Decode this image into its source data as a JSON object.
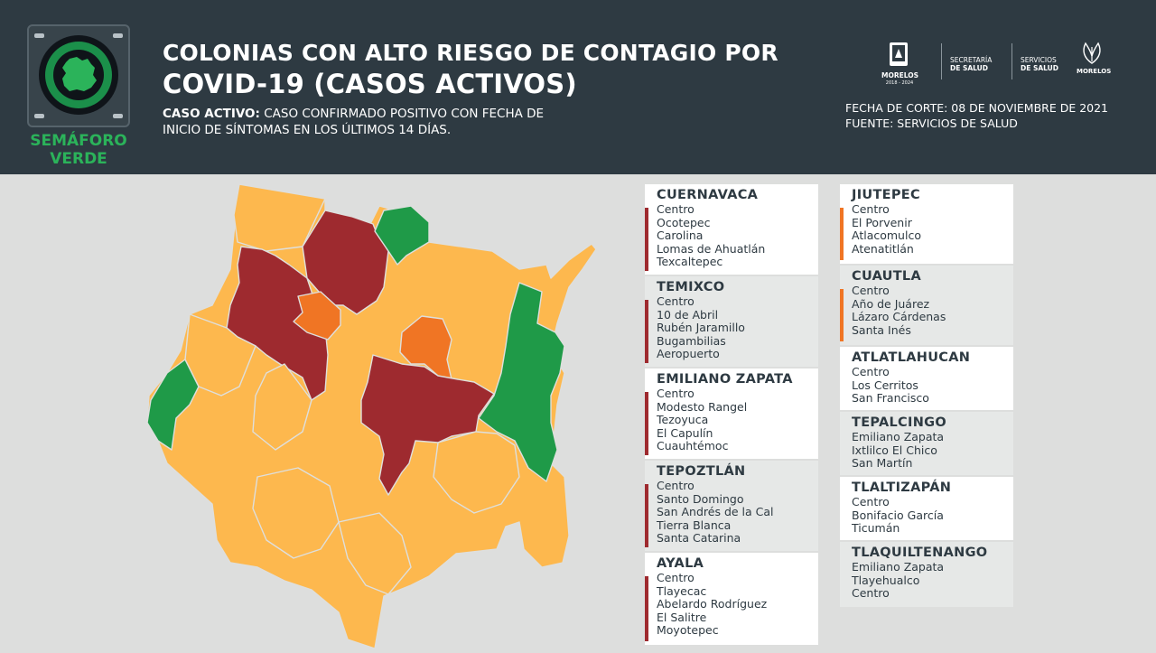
{
  "header": {
    "title_line1": "COLONIAS CON ALTO RIESGO DE CONTAGIO POR",
    "title_line2": "COVID-19 (CASOS ACTIVOS)",
    "definition_label": "CASO ACTIVO:",
    "definition_text_1": "CASO CONFIRMADO POSITIVO CON FECHA DE",
    "definition_text_2": "INICIO DE SÍNTOMAS EN LOS ÚLTIMOS 14 DÍAS.",
    "fecha": "FECHA DE CORTE: 08 DE NOVIEMBRE DE 2021",
    "fuente": "FUENTE: SERVICIOS DE SALUD",
    "semaforo_1": "SEMÁFORO",
    "semaforo_2": "VERDE"
  },
  "gov_logos": {
    "morelos": "MORELOS",
    "morelos_years": "2018 - 2024",
    "secretaria_1": "SECRETARÍA",
    "secretaria_2": "DE SALUD",
    "servicios_1": "SERVICIOS",
    "servicios_2": "DE SALUD",
    "morelos2": "MORELOS"
  },
  "colors": {
    "header_bg": "#2e3a42",
    "semaforo_green": "#2bb35a",
    "risk_high": "#9e2a2f",
    "risk_medium": "#f07524",
    "risk_low_yellow": "#fdb84e",
    "risk_green": "#1f9a48",
    "bar_dark_red": "#9e2a2f",
    "bar_orange": "#f07524"
  },
  "municipios_left": [
    {
      "name": "CUERNAVACA",
      "colonias": [
        "Centro",
        "Ocotepec",
        "Carolina",
        "Lomas de Ahuatlán",
        "Texcaltepec"
      ],
      "bar": "dark-red"
    },
    {
      "name": "TEMIXCO",
      "colonias": [
        "Centro",
        "10 de Abril",
        "Rubén Jaramillo",
        "Bugambilias",
        "Aeropuerto"
      ],
      "bar": "dark-red"
    },
    {
      "name": "EMILIANO ZAPATA",
      "colonias": [
        "Centro",
        "Modesto Rangel",
        "Tezoyuca",
        "El Capulín",
        "Cuauhtémoc"
      ],
      "bar": "dark-red"
    },
    {
      "name": "TEPOZTLÁN",
      "colonias": [
        "Centro",
        "Santo Domingo",
        "San Andrés de la Cal",
        "Tierra Blanca",
        "Santa Catarina"
      ],
      "bar": "dark-red"
    },
    {
      "name": "AYALA",
      "colonias": [
        "Centro",
        "Tlayecac",
        "Abelardo Rodríguez",
        "El Salitre",
        "Moyotepec"
      ],
      "bar": "dark-red"
    }
  ],
  "municipios_right": [
    {
      "name": "JIUTEPEC",
      "colonias": [
        "Centro",
        "El Porvenir",
        "Atlacomulco",
        "Atenatitlán"
      ],
      "bar": "orange"
    },
    {
      "name": "CUAUTLA",
      "colonias": [
        "Centro",
        "Año de Juárez",
        "Lázaro Cárdenas",
        "Santa Inés"
      ],
      "bar": "orange"
    },
    {
      "name": "ATLATLAHUCAN",
      "colonias": [
        "Centro",
        "Los Cerritos",
        "San Francisco"
      ],
      "bar": "none"
    },
    {
      "name": "TEPALCINGO",
      "colonias": [
        "Emiliano Zapata",
        "Ixtlilco El Chico",
        "San Martín"
      ],
      "bar": "none"
    },
    {
      "name": "TLALTIZAPÁN",
      "colonias": [
        "Centro",
        "Bonifacio García",
        "Ticumán"
      ],
      "bar": "none"
    },
    {
      "name": "TLAQUILTENANGO",
      "colonias": [
        "Emiliano Zapata",
        "Tlayehualco",
        "Centro"
      ],
      "bar": "none"
    }
  ]
}
